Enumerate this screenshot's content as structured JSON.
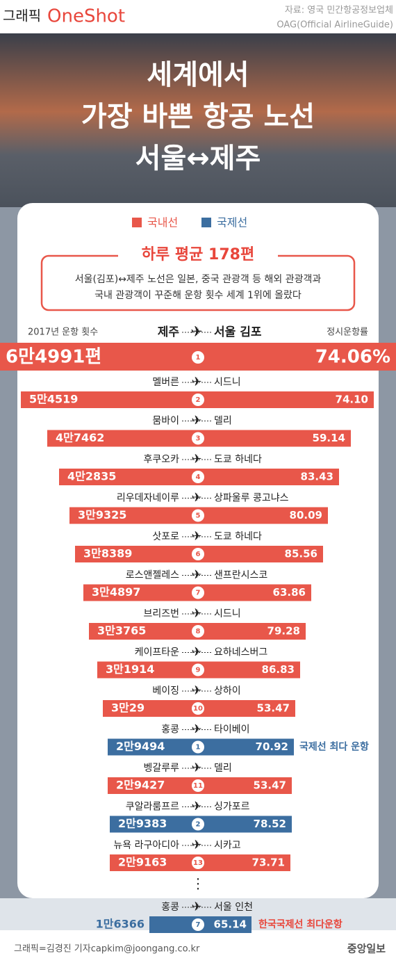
{
  "header": {
    "label": "그래픽",
    "brand": "OneShot",
    "source_1": "자료: 영국 민간항공정보업체",
    "source_2": "OAG(Official AirlineGuide)"
  },
  "title": [
    "세계에서",
    "가장 바쁜 항공 노선",
    "서울↔제주"
  ],
  "legend": {
    "domestic": "국내선",
    "international": "국제선"
  },
  "callout": {
    "title": "하루 평균 178편",
    "lines": [
      "서울(김포)↔제주 노선은 일본, 중국 관광객 등 해외 관광객과",
      "국내 관광객이 꾸준해 운항 횟수 세계 1위에 올랐다"
    ]
  },
  "columns": {
    "count": "2017년 운항 횟수",
    "ontime": "정시운항률"
  },
  "top": {
    "from": "제주",
    "to": "서울 김포",
    "count": "6만4991편",
    "rank": "1",
    "ontime": "74.06%"
  },
  "routes": [
    {
      "from": "멜버른",
      "to": "시드니",
      "count": "5만4519",
      "rank": "2",
      "ontime": "74.10",
      "kind": "domestic"
    },
    {
      "from": "뭄바이",
      "to": "델리",
      "count": "4만7462",
      "rank": "3",
      "ontime": "59.14",
      "kind": "domestic"
    },
    {
      "from": "후쿠오카",
      "to": "도쿄 하네다",
      "count": "4만2835",
      "rank": "4",
      "ontime": "83.43",
      "kind": "domestic"
    },
    {
      "from": "리우데자네이루",
      "to": "상파울루 콩고냐스",
      "count": "3만9325",
      "rank": "5",
      "ontime": "80.09",
      "kind": "domestic"
    },
    {
      "from": "삿포로",
      "to": "도쿄 하네다",
      "count": "3만8389",
      "rank": "6",
      "ontime": "85.56",
      "kind": "domestic"
    },
    {
      "from": "로스앤젤레스",
      "to": "샌프란시스코",
      "count": "3만4897",
      "rank": "7",
      "ontime": "63.86",
      "kind": "domestic"
    },
    {
      "from": "브리즈번",
      "to": "시드니",
      "count": "3만3765",
      "rank": "8",
      "ontime": "79.28",
      "kind": "domestic"
    },
    {
      "from": "케이프타운",
      "to": "요하네스버그",
      "count": "3만1914",
      "rank": "9",
      "ontime": "86.83",
      "kind": "domestic"
    },
    {
      "from": "베이징",
      "to": "상하이",
      "count": "3만29",
      "rank": "10",
      "ontime": "53.47",
      "kind": "domestic"
    },
    {
      "from": "홍콩",
      "to": "타이베이",
      "count": "2만9494",
      "rank": "1",
      "ontime": "70.92",
      "kind": "international",
      "note": "국제선 최다 운항"
    },
    {
      "from": "벵갈루루",
      "to": "델리",
      "count": "2만9427",
      "rank": "11",
      "ontime": "53.47",
      "kind": "domestic"
    },
    {
      "from": "쿠알라룸프르",
      "to": "싱가포르",
      "count": "2만9383",
      "rank": "2",
      "ontime": "78.52",
      "kind": "international"
    },
    {
      "from": "뉴욕 라구아디아",
      "to": "시카고",
      "count": "2만9163",
      "rank": "13",
      "ontime": "73.71",
      "kind": "domestic"
    }
  ],
  "korea": {
    "from": "홍콩",
    "to": "서울 인천",
    "count": "1만6366",
    "rank": "7",
    "ontime": "65.14",
    "note": "한국국제선 최다운항"
  },
  "footer": {
    "credit": "그래픽=김경진 기자capkim@joongang.co.kr",
    "publisher": "중앙일보"
  }
}
